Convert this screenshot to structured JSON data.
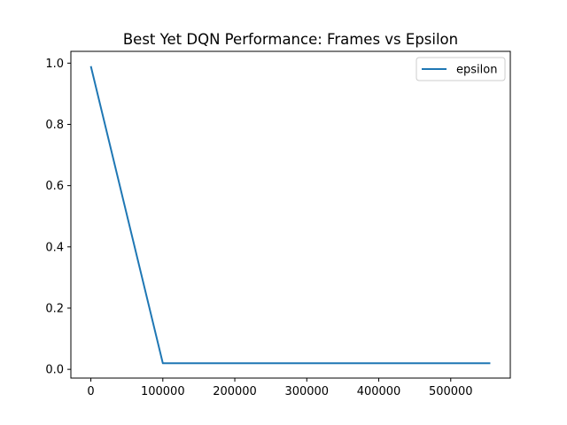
{
  "chart_data": {
    "type": "line",
    "title": "Best Yet DQN Performance: Frames vs Epsilon",
    "xlabel": "",
    "ylabel": "",
    "xlim": [
      -27750,
      582750
    ],
    "ylim": [
      -0.0285,
      1.0385
    ],
    "x_ticks": [
      0,
      100000,
      200000,
      300000,
      400000,
      500000
    ],
    "x_tick_labels": [
      "0",
      "100000",
      "200000",
      "300000",
      "400000",
      "500000"
    ],
    "y_ticks": [
      0.0,
      0.2,
      0.4,
      0.6,
      0.8,
      1.0
    ],
    "y_tick_labels": [
      "0.0",
      "0.2",
      "0.4",
      "0.6",
      "0.8",
      "1.0"
    ],
    "grid": false,
    "legend_position": "top-right",
    "series": [
      {
        "name": "epsilon",
        "color": "#1f77b4",
        "x": [
          0,
          100000,
          555000
        ],
        "y": [
          0.99,
          0.02,
          0.02
        ]
      }
    ]
  }
}
